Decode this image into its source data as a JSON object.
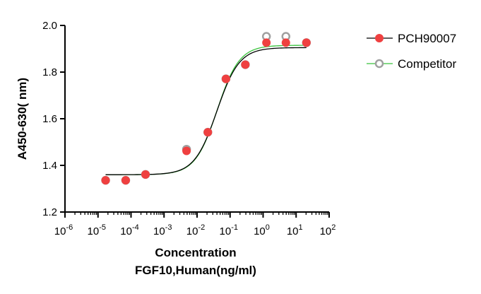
{
  "chart_data": {
    "type": "scatter",
    "x_scale": "log",
    "xlim": [
      1e-06,
      100
    ],
    "ylim": [
      1.2,
      2.0
    ],
    "x_ticks": [
      {
        "base": "10",
        "exp": "-6",
        "value": 1e-06
      },
      {
        "base": "10",
        "exp": "-5",
        "value": 1e-05
      },
      {
        "base": "10",
        "exp": "-4",
        "value": 0.0001
      },
      {
        "base": "10",
        "exp": "-3",
        "value": 0.001
      },
      {
        "base": "10",
        "exp": "-2",
        "value": 0.01
      },
      {
        "base": "10",
        "exp": "-1",
        "value": 0.1
      },
      {
        "base": "10",
        "exp": "0",
        "value": 1
      },
      {
        "base": "10",
        "exp": "1",
        "value": 10
      },
      {
        "base": "10",
        "exp": "2",
        "value": 100
      }
    ],
    "y_ticks": [
      {
        "label": "1.2",
        "value": 1.2
      },
      {
        "label": "1.4",
        "value": 1.4
      },
      {
        "label": "1.6",
        "value": 1.6
      },
      {
        "label": "1.8",
        "value": 1.8
      },
      {
        "label": "2.0",
        "value": 2.0
      }
    ],
    "xlabel_line1": "Concentration",
    "xlabel_line2": "FGF10,Human(ng/ml)",
    "ylabel": "A450-630( nm)",
    "legend_position": "top-right",
    "series": [
      {
        "name": "PCH90007",
        "marker": "filled-circle",
        "color": "#ef4040",
        "line_color": "#000000",
        "x": [
          1.7e-05,
          6.9e-05,
          0.000275,
          0.0048,
          0.0212,
          0.075,
          0.29,
          1.26,
          4.9,
          20.5
        ],
        "y": [
          1.336,
          1.336,
          1.361,
          1.462,
          1.542,
          1.771,
          1.832,
          1.926,
          1.926,
          1.926
        ],
        "fit": {
          "bottom": 1.36,
          "top": 1.905,
          "log_ec50": -1.4,
          "hill": 1.28
        }
      },
      {
        "name": "Competitor",
        "marker": "open-circle",
        "color": "#a0a0a0",
        "line_color": "#39c23c",
        "x": [
          1.7e-05,
          6.9e-05,
          0.000275,
          0.0048,
          0.0212,
          0.075,
          0.29,
          1.26,
          4.9,
          20.5
        ],
        "y": [
          1.336,
          1.336,
          1.361,
          1.469,
          1.542,
          1.771,
          1.832,
          1.953,
          1.953,
          1.926
        ],
        "fit": {
          "bottom": 1.36,
          "top": 1.915,
          "log_ec50": -1.39,
          "hill": 1.3
        }
      }
    ]
  }
}
